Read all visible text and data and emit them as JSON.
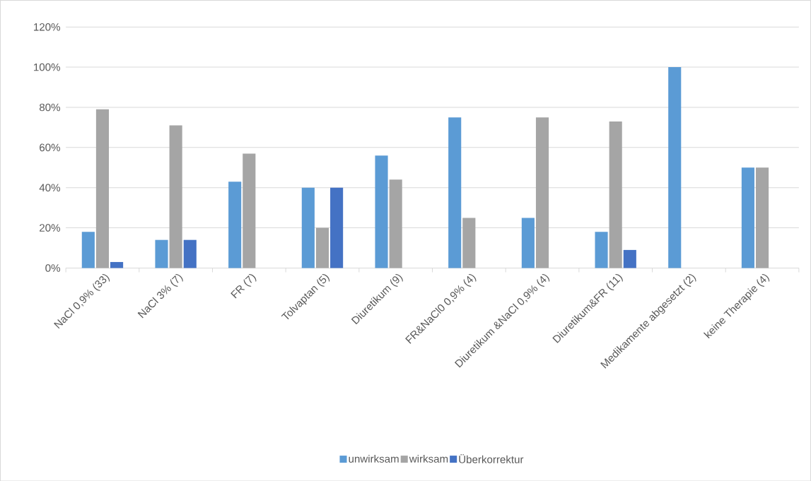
{
  "chart_data": {
    "type": "bar",
    "categories": [
      "NaCl 0,9% (33)",
      "NaCl 3% (7)",
      "FR (7)",
      "Tolvaptan (5)",
      "Diuretikum (9)",
      "FR&NaCl0 0,9% (4)",
      "Diuretikum &NaCl 0,9% (4)",
      "Diuretikum&FR (11)",
      "Medikamente abgesetzt (2)",
      "keine Therapie (4)"
    ],
    "series": [
      {
        "name": "unwirksam",
        "color": "#5b9bd5",
        "values": [
          18,
          14,
          43,
          40,
          56,
          75,
          25,
          18,
          100,
          50
        ]
      },
      {
        "name": "wirksam",
        "color": "#a5a5a5",
        "values": [
          79,
          71,
          57,
          20,
          44,
          25,
          75,
          73,
          null,
          50
        ]
      },
      {
        "name": "Überkorrektur",
        "color": "#4472c4",
        "values": [
          3,
          14,
          null,
          40,
          null,
          null,
          null,
          9,
          null,
          null
        ]
      }
    ],
    "ylim": [
      0,
      120
    ],
    "yticks": [
      {
        "value": 0,
        "label": "0%"
      },
      {
        "value": 20,
        "label": "20%"
      },
      {
        "value": 40,
        "label": "40%"
      },
      {
        "value": 60,
        "label": "60%"
      },
      {
        "value": 80,
        "label": "80%"
      },
      {
        "value": 100,
        "label": "100%"
      },
      {
        "value": 120,
        "label": "120%"
      }
    ],
    "grid": "y",
    "legend": "bottom"
  }
}
